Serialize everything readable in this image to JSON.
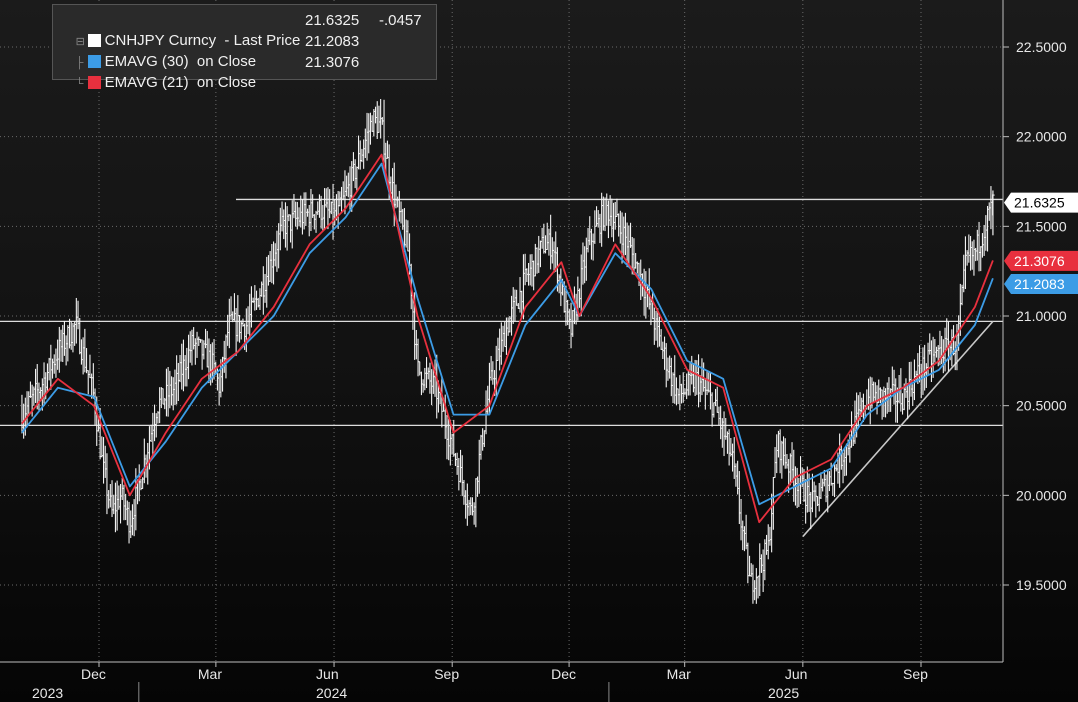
{
  "legend": {
    "row1": {
      "label": "CNHJPY Curncy  - Last Price",
      "value": "21.6325",
      "change": "-.0457",
      "color": "#ffffff"
    },
    "row2": {
      "label": "EMAVG (30)  on Close",
      "value": "21.2083",
      "color": "#3c9ce6"
    },
    "row3": {
      "label": "EMAVG (21)  on Close",
      "value": "21.3076",
      "color": "#e8303e"
    }
  },
  "chart_data": {
    "type": "line",
    "title": "CNHJPY Curncy",
    "ylim": [
      19.1,
      22.8
    ],
    "yticks": [
      19.5,
      20.0,
      20.5,
      21.0,
      21.5,
      22.0,
      22.5
    ],
    "ytick_labels": [
      "19.5000",
      "20.0000",
      "20.5000",
      "21.0000",
      "21.5000",
      "22.0000",
      "22.5000"
    ],
    "x_month_ticks": [
      "Dec",
      "Mar",
      "Jun",
      "Sep",
      "Dec",
      "Mar",
      "Jun",
      "Sep"
    ],
    "x_year_ticks": [
      "2023",
      "2024",
      "2025"
    ],
    "grid": true,
    "last_price_tag": "21.6325",
    "ema21_tag": "21.3076",
    "ema30_tag": "21.2083",
    "price_points": [
      [
        "2023-10-02",
        20.45
      ],
      [
        "2023-10-16",
        20.6
      ],
      [
        "2023-10-30",
        20.8
      ],
      [
        "2023-11-13",
        20.95
      ],
      [
        "2023-11-27",
        20.55
      ],
      [
        "2023-12-04",
        20.15
      ],
      [
        "2023-12-11",
        19.9
      ],
      [
        "2023-12-18",
        20.0
      ],
      [
        "2023-12-25",
        19.85
      ],
      [
        "2024-01-01",
        20.05
      ],
      [
        "2024-01-15",
        20.5
      ],
      [
        "2024-01-29",
        20.6
      ],
      [
        "2024-02-12",
        20.85
      ],
      [
        "2024-02-26",
        20.75
      ],
      [
        "2024-03-04",
        20.6
      ],
      [
        "2024-03-11",
        20.95
      ],
      [
        "2024-03-25",
        20.95
      ],
      [
        "2024-04-08",
        21.2
      ],
      [
        "2024-04-22",
        21.5
      ],
      [
        "2024-05-06",
        21.55
      ],
      [
        "2024-05-20",
        21.6
      ],
      [
        "2024-06-03",
        21.55
      ],
      [
        "2024-06-17",
        21.8
      ],
      [
        "2024-07-01",
        22.1
      ],
      [
        "2024-07-08",
        22.05
      ],
      [
        "2024-07-15",
        21.75
      ],
      [
        "2024-07-29",
        21.35
      ],
      [
        "2024-08-05",
        20.7
      ],
      [
        "2024-08-19",
        20.6
      ],
      [
        "2024-09-02",
        20.25
      ],
      [
        "2024-09-16",
        19.9
      ],
      [
        "2024-09-30",
        20.6
      ],
      [
        "2024-10-14",
        20.95
      ],
      [
        "2024-10-28",
        21.2
      ],
      [
        "2024-11-11",
        21.4
      ],
      [
        "2024-11-18",
        21.4
      ],
      [
        "2024-12-02",
        20.9
      ],
      [
        "2024-12-16",
        21.4
      ],
      [
        "2024-12-30",
        21.6
      ],
      [
        "2025-01-13",
        21.45
      ],
      [
        "2025-01-27",
        21.2
      ],
      [
        "2025-02-10",
        20.85
      ],
      [
        "2025-02-24",
        20.55
      ],
      [
        "2025-03-10",
        20.65
      ],
      [
        "2025-03-24",
        20.5
      ],
      [
        "2025-04-07",
        20.2
      ],
      [
        "2025-04-21",
        19.5
      ],
      [
        "2025-05-05",
        19.7
      ],
      [
        "2025-05-12",
        20.3
      ],
      [
        "2025-05-26",
        20.1
      ],
      [
        "2025-06-09",
        19.95
      ],
      [
        "2025-06-23",
        20.1
      ],
      [
        "2025-07-07",
        20.3
      ],
      [
        "2025-07-21",
        20.55
      ],
      [
        "2025-08-04",
        20.55
      ],
      [
        "2025-08-18",
        20.55
      ],
      [
        "2025-09-01",
        20.7
      ],
      [
        "2025-09-15",
        20.8
      ],
      [
        "2025-09-29",
        20.85
      ],
      [
        "2025-10-06",
        21.3
      ],
      [
        "2025-10-13",
        21.35
      ],
      [
        "2025-10-27",
        21.63
      ]
    ],
    "series": [
      {
        "name": "CNHJPY Curncy - Last Price",
        "color": "#ffffff",
        "x": [
          "2023-10-02",
          "2023-11-13",
          "2023-12-25",
          "2024-02-12",
          "2024-03-25",
          "2024-05-06",
          "2024-06-17",
          "2024-07-08",
          "2024-08-19",
          "2024-09-30",
          "2024-11-11",
          "2024-12-30",
          "2025-02-10",
          "2025-03-24",
          "2025-04-21",
          "2025-06-09",
          "2025-07-21",
          "2025-09-01",
          "2025-10-27"
        ],
        "values": [
          20.45,
          20.95,
          19.85,
          20.85,
          20.95,
          21.55,
          21.8,
          22.05,
          20.6,
          20.6,
          21.4,
          21.6,
          20.85,
          20.5,
          19.5,
          19.95,
          20.55,
          20.7,
          21.63
        ]
      },
      {
        "name": "EMAVG (30) on Close",
        "color": "#3c9ce6",
        "x": [
          "2023-10-02",
          "2023-10-30",
          "2023-11-27",
          "2023-12-25",
          "2024-01-22",
          "2024-02-19",
          "2024-03-18",
          "2024-04-15",
          "2024-05-13",
          "2024-06-10",
          "2024-07-08",
          "2024-08-05",
          "2024-09-02",
          "2024-09-30",
          "2024-10-28",
          "2024-11-25",
          "2024-12-09",
          "2025-01-06",
          "2025-02-03",
          "2025-03-03",
          "2025-03-31",
          "2025-04-28",
          "2025-05-26",
          "2025-06-23",
          "2025-07-21",
          "2025-08-18",
          "2025-09-15",
          "2025-10-13",
          "2025-10-27"
        ],
        "values": [
          20.35,
          20.6,
          20.55,
          20.05,
          20.3,
          20.6,
          20.8,
          21.0,
          21.35,
          21.55,
          21.85,
          21.1,
          20.45,
          20.45,
          20.95,
          21.2,
          21.0,
          21.35,
          21.15,
          20.75,
          20.65,
          19.95,
          20.05,
          20.15,
          20.45,
          20.6,
          20.7,
          20.95,
          21.21
        ]
      },
      {
        "name": "EMAVG (21) on Close",
        "color": "#e8303e",
        "x": [
          "2023-10-02",
          "2023-10-30",
          "2023-11-27",
          "2023-12-25",
          "2024-01-22",
          "2024-02-19",
          "2024-03-18",
          "2024-04-15",
          "2024-05-13",
          "2024-06-10",
          "2024-07-08",
          "2024-08-05",
          "2024-09-02",
          "2024-09-30",
          "2024-10-28",
          "2024-11-25",
          "2024-12-09",
          "2025-01-06",
          "2025-02-03",
          "2025-03-03",
          "2025-03-31",
          "2025-04-28",
          "2025-05-26",
          "2025-06-23",
          "2025-07-21",
          "2025-08-18",
          "2025-09-15",
          "2025-10-13",
          "2025-10-27"
        ],
        "values": [
          20.4,
          20.65,
          20.5,
          20.0,
          20.35,
          20.65,
          20.8,
          21.05,
          21.4,
          21.6,
          21.9,
          21.0,
          20.35,
          20.5,
          21.05,
          21.3,
          21.0,
          21.4,
          21.1,
          20.7,
          20.6,
          19.85,
          20.1,
          20.2,
          20.5,
          20.6,
          20.75,
          21.05,
          21.31
        ]
      }
    ],
    "annotations": {
      "hlines": [
        21.65,
        20.97,
        20.39
      ],
      "trendline": {
        "from": [
          "2025-06-01",
          19.77
        ],
        "to": [
          "2025-10-27",
          20.97
        ]
      }
    }
  }
}
